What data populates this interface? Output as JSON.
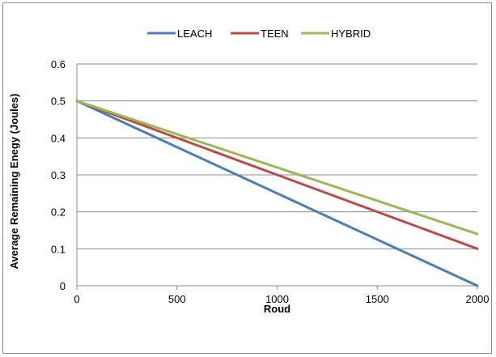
{
  "chart_data": {
    "type": "line",
    "title": "",
    "xlabel": "Roud",
    "ylabel": "Average Remaining Enegy (Joules)",
    "xlim": [
      0,
      2000
    ],
    "ylim": [
      0,
      0.6
    ],
    "x_ticks": [
      "0",
      "500",
      "1000",
      "1500",
      "2000"
    ],
    "y_ticks": [
      "0",
      "0.1",
      "0.2",
      "0.3",
      "0.4",
      "0.5",
      "0.6"
    ],
    "grid": true,
    "legend_position": "top",
    "series": [
      {
        "name": "LEACH",
        "color": "#4a7ebb",
        "x": [
          0,
          2000
        ],
        "y": [
          0.5,
          0.0
        ]
      },
      {
        "name": "TEEN",
        "color": "#be4b48",
        "x": [
          0,
          2000
        ],
        "y": [
          0.5,
          0.1
        ]
      },
      {
        "name": "HYBRID",
        "color": "#98b954",
        "x": [
          0,
          2000
        ],
        "y": [
          0.5,
          0.14
        ]
      }
    ]
  }
}
